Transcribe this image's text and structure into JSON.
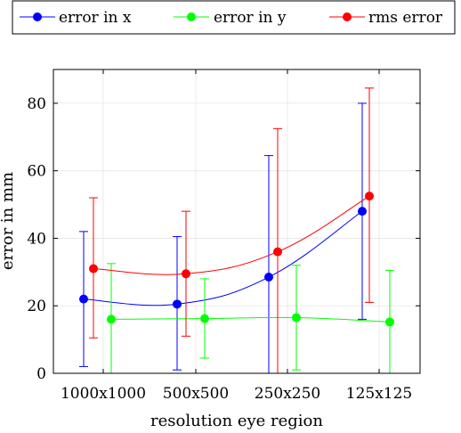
{
  "chart_data": {
    "type": "line",
    "title": "",
    "xlabel": "resolution eye region",
    "ylabel": "error in mm",
    "categories": [
      "1000x1000",
      "500x500",
      "250x250",
      "125x125"
    ],
    "ylim": [
      0,
      90
    ],
    "yticks": [
      0,
      20,
      40,
      60,
      80
    ],
    "grid": true,
    "legend_position": "top",
    "series": [
      {
        "name": "error in x",
        "color": "#0000ff",
        "values": [
          22,
          20.5,
          28.5,
          48
        ],
        "error_low": [
          2,
          1,
          0,
          16
        ],
        "error_high": [
          42,
          40.5,
          64.5,
          80
        ]
      },
      {
        "name": "error in y",
        "color": "#00ff00",
        "values": [
          16,
          16.2,
          16.5,
          15.2
        ],
        "error_low": [
          0,
          4.5,
          1,
          0
        ],
        "error_high": [
          32.5,
          28,
          32,
          30.5
        ]
      },
      {
        "name": "rms error",
        "color": "#ff0000",
        "values": [
          31,
          29.5,
          36,
          52.5
        ],
        "error_low": [
          10.5,
          11,
          0,
          21
        ],
        "error_high": [
          52,
          48,
          72.5,
          84.5
        ]
      }
    ]
  }
}
